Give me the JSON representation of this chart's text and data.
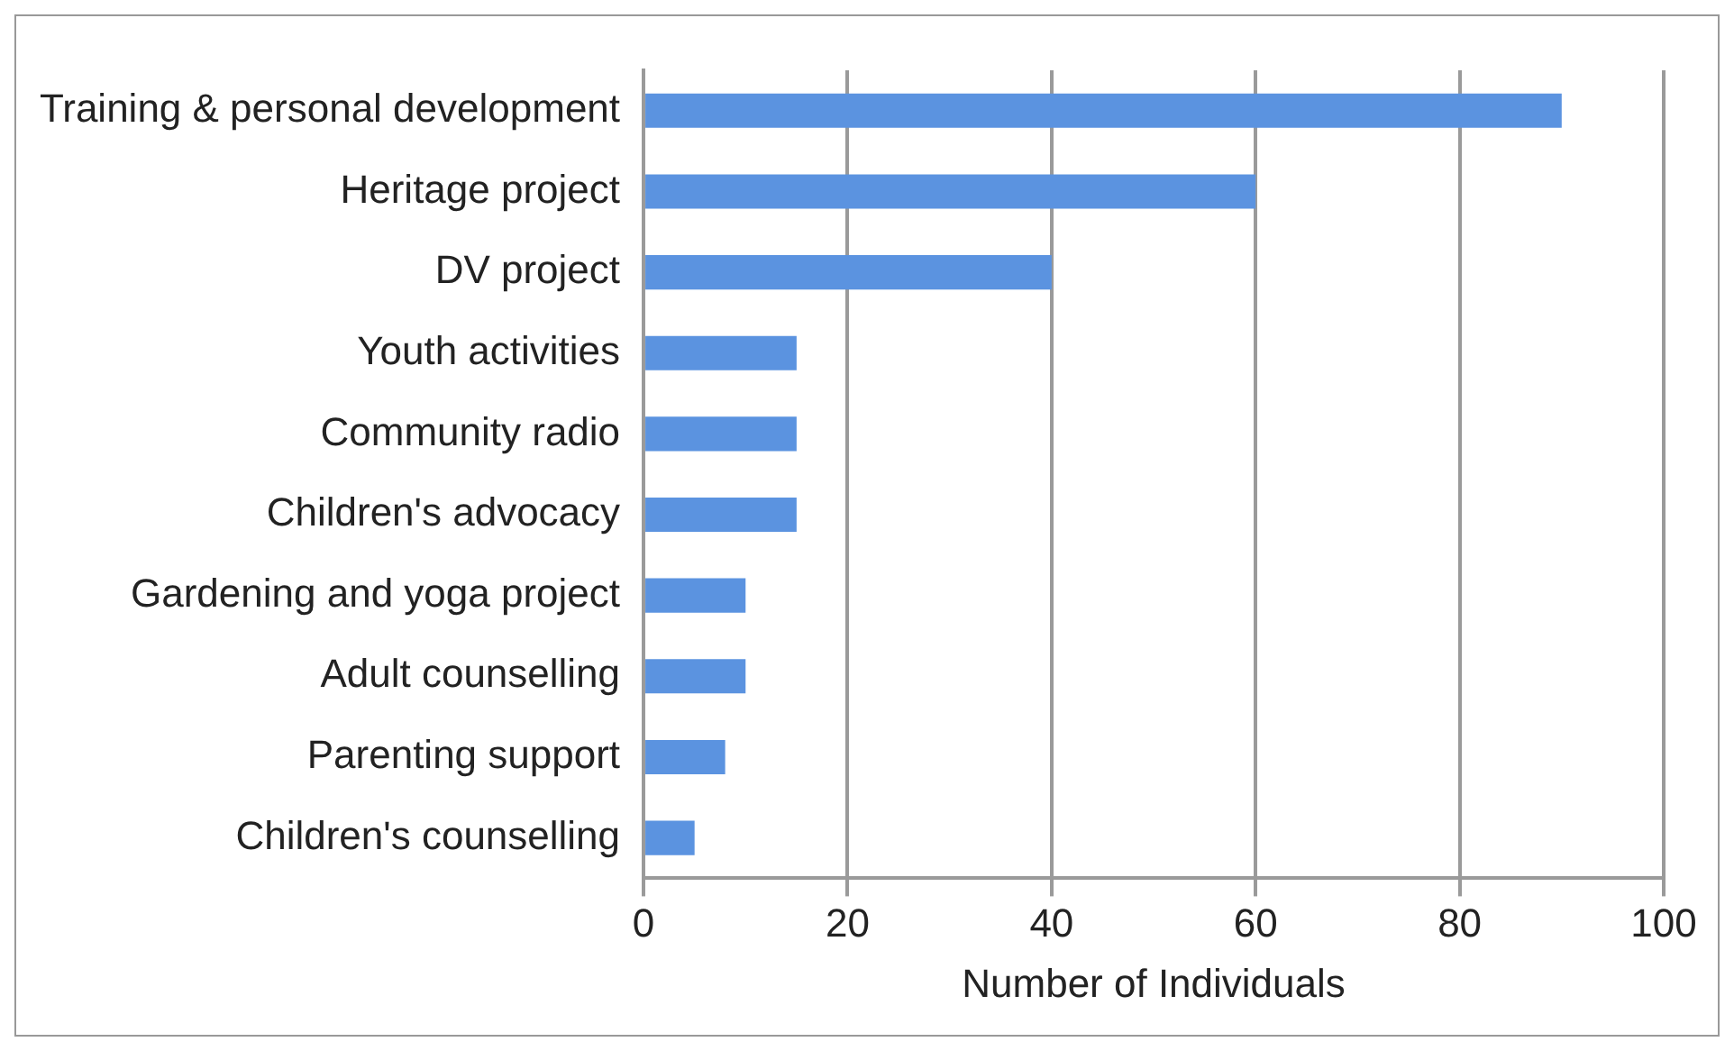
{
  "chart_data": {
    "type": "bar",
    "orientation": "horizontal",
    "xlabel": "Number of Individuals",
    "categories": [
      "Training & personal development",
      "Heritage project",
      "DV project",
      "Youth activities",
      "Community radio",
      "Children's advocacy",
      "Gardening and yoga project",
      "Adult counselling",
      "Parenting support",
      "Children's counselling"
    ],
    "values": [
      90,
      60,
      40,
      15,
      15,
      15,
      10,
      10,
      8,
      5
    ],
    "color": "#5b93e0",
    "xlim": [
      0,
      100
    ],
    "xticks": [
      0,
      20,
      40,
      60,
      80,
      100
    ],
    "grid": "x",
    "legend": false
  }
}
